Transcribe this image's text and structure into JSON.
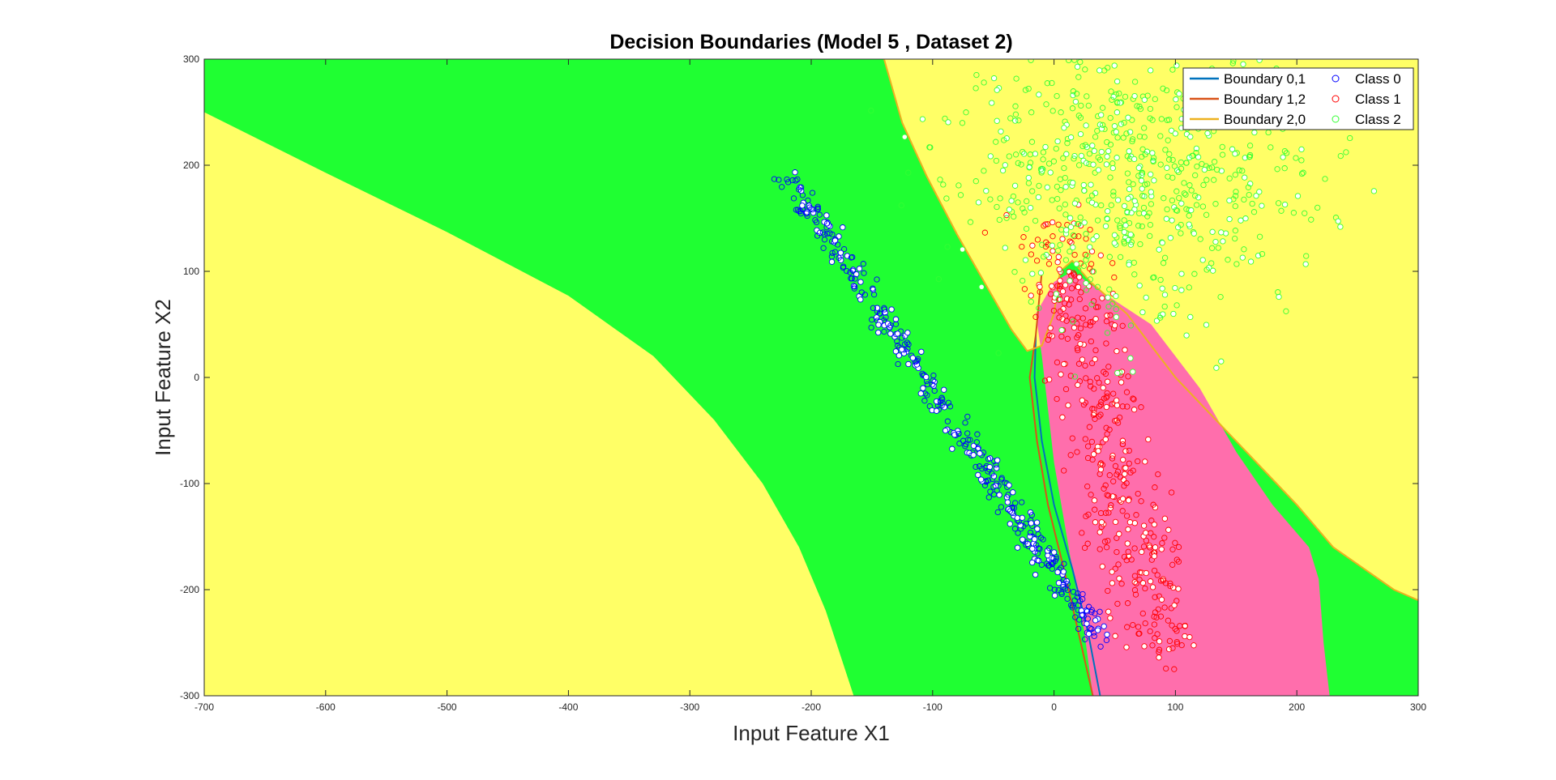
{
  "chart_data": {
    "type": "scatter",
    "title": "Decision Boundaries (Model 5 , Dataset 2)",
    "xlabel": "Input Feature X1",
    "ylabel": "Input Feature X2",
    "xlim": [
      -700,
      300
    ],
    "ylim": [
      -300,
      300
    ],
    "xticks": [
      -700,
      -600,
      -500,
      -400,
      -300,
      -200,
      -100,
      0,
      100,
      200,
      300
    ],
    "yticks": [
      -300,
      -200,
      -100,
      0,
      100,
      200,
      300
    ],
    "grid": false,
    "legend_position": "top-right",
    "region_colors": {
      "class0": "#ff6eac",
      "class1": "#ffff00",
      "class2": "#1fff32"
    },
    "regions": {
      "left_yellow": [
        [
          -700,
          250
        ],
        [
          -600,
          193
        ],
        [
          -500,
          137
        ],
        [
          -400,
          77
        ],
        [
          -330,
          20
        ],
        [
          -280,
          -40
        ],
        [
          -240,
          -100
        ],
        [
          -210,
          -160
        ],
        [
          -188,
          -220
        ],
        [
          -165,
          -300
        ],
        [
          -700,
          -300
        ]
      ],
      "upper_yellow": [
        [
          -140,
          300
        ],
        [
          -125,
          240
        ],
        [
          -105,
          190
        ],
        [
          -80,
          135
        ],
        [
          -55,
          85
        ],
        [
          -35,
          45
        ],
        [
          -22,
          25
        ],
        [
          -10,
          30
        ],
        [
          0,
          60
        ],
        [
          5,
          100
        ],
        [
          15,
          110
        ],
        [
          30,
          90
        ],
        [
          60,
          60
        ],
        [
          100,
          0
        ],
        [
          150,
          -60
        ],
        [
          200,
          -120
        ],
        [
          230,
          -160
        ],
        [
          255,
          -180
        ],
        [
          280,
          -200
        ],
        [
          300,
          -210
        ],
        [
          300,
          300
        ]
      ],
      "pink": [
        [
          -15,
          60
        ],
        [
          -10,
          20
        ],
        [
          0,
          -80
        ],
        [
          15,
          -180
        ],
        [
          25,
          -240
        ],
        [
          32,
          -300
        ],
        [
          227,
          -300
        ],
        [
          222,
          -250
        ],
        [
          218,
          -190
        ],
        [
          210,
          -160
        ],
        [
          180,
          -120
        ],
        [
          150,
          -70
        ],
        [
          120,
          -10
        ],
        [
          80,
          50
        ],
        [
          40,
          80
        ],
        [
          15,
          100
        ],
        [
          0,
          90
        ]
      ]
    },
    "boundaries": [
      {
        "name": "Boundary 0,1",
        "color": "#0072bd",
        "points": [
          [
            -15,
            40
          ],
          [
            -16,
            0
          ],
          [
            -10,
            -60
          ],
          [
            0,
            -120
          ],
          [
            15,
            -180
          ],
          [
            28,
            -240
          ],
          [
            38,
            -300
          ]
        ]
      },
      {
        "name": "Boundary 1,2",
        "color": "#d95319",
        "points": [
          [
            -10,
            100
          ],
          [
            -15,
            40
          ],
          [
            -20,
            0
          ],
          [
            -14,
            -60
          ],
          [
            -5,
            -120
          ],
          [
            8,
            -180
          ],
          [
            20,
            -240
          ],
          [
            32,
            -300
          ]
        ]
      },
      {
        "name": "Boundary 2,0",
        "color": "#edb120",
        "points": [
          [
            -140,
            300
          ],
          [
            -125,
            240
          ],
          [
            -105,
            190
          ],
          [
            -80,
            135
          ],
          [
            -55,
            85
          ],
          [
            -35,
            45
          ],
          [
            -22,
            25
          ],
          [
            -10,
            30
          ],
          [
            0,
            60
          ],
          [
            5,
            100
          ],
          [
            15,
            110
          ],
          [
            30,
            90
          ],
          [
            60,
            60
          ],
          [
            100,
            0
          ],
          [
            150,
            -60
          ],
          [
            200,
            -120
          ],
          [
            230,
            -160
          ],
          [
            255,
            -180
          ],
          [
            280,
            -200
          ],
          [
            300,
            -210
          ]
        ]
      }
    ],
    "series": [
      {
        "name": "Class 0",
        "color": "#0000ff",
        "distribution": {
          "line_start": [
            -220,
            190
          ],
          "line_end": [
            40,
            -250
          ],
          "spread": 6,
          "count": 420
        }
      },
      {
        "name": "Class 1",
        "color": "#ff0000",
        "distribution": {
          "line_start": [
            0,
            140
          ],
          "line_end": [
            90,
            -260
          ],
          "spread": 18,
          "count": 420
        }
      },
      {
        "name": "Class 2",
        "color": "#33ff33",
        "distribution": {
          "center": [
            60,
            190
          ],
          "spread_x": 70,
          "spread_y": 70,
          "count": 700
        }
      }
    ]
  }
}
